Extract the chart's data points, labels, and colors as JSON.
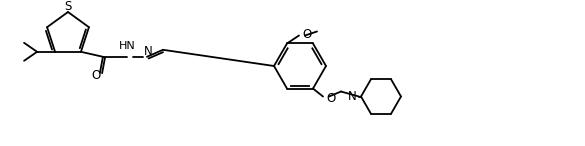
{
  "bg": "#ffffff",
  "lc": "#000000",
  "lw": 1.3,
  "S_label": "S",
  "O_carb_label": "O",
  "NH_label": "HN",
  "N_imine_label": "N",
  "O_meth_label": "O",
  "O_eth_label": "O",
  "N_pip_label": "N"
}
